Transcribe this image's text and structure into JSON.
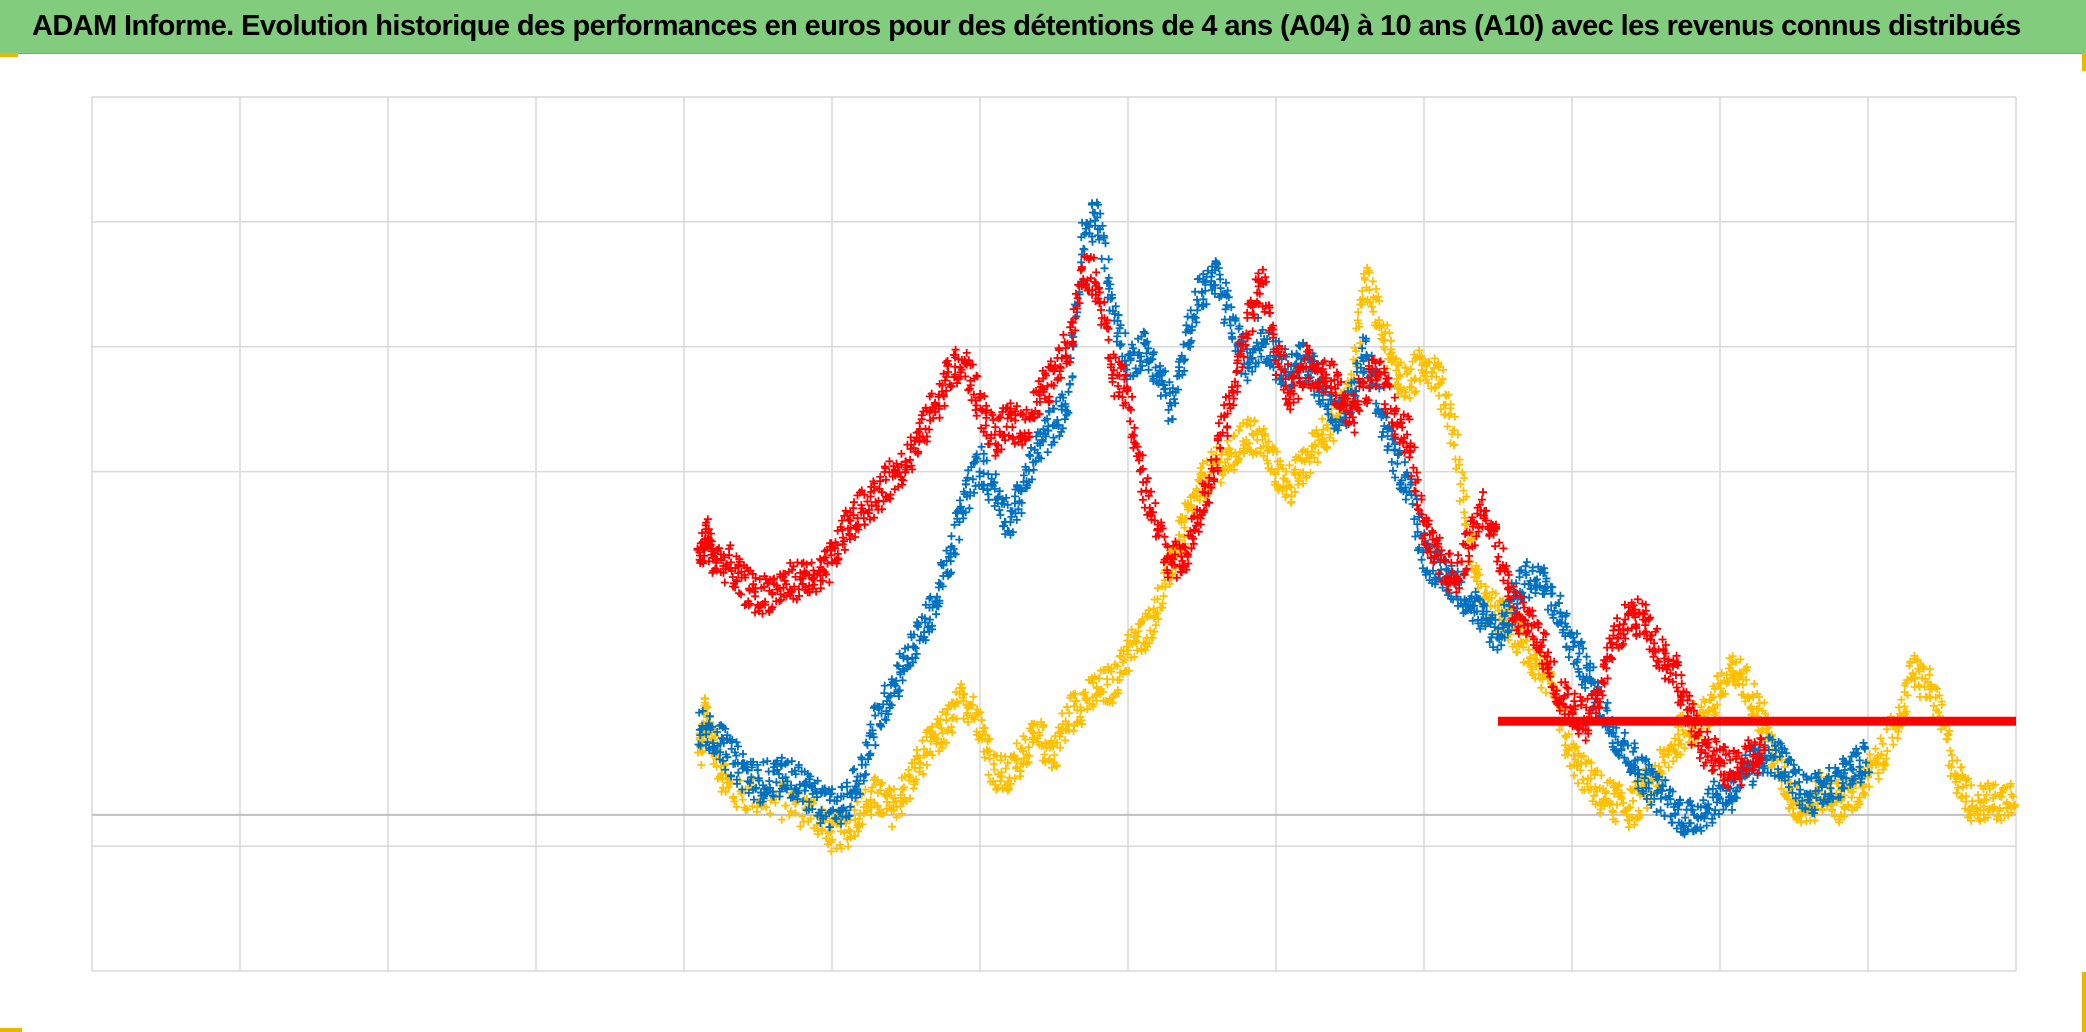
{
  "title": "ADAM Informe. Evolution historique des performances en euros pour des détentions de 4 ans (A04) à 10 ans (A10) avec les revenus connus distribués",
  "colors": {
    "title_bg": "#82cc7e",
    "grid": "#d9d9d9",
    "zero_line": "#bfbfbf",
    "frame_corner": "#e8b800"
  },
  "chart_data": {
    "type": "scatter",
    "marker": "cross",
    "title": "ADAM Informe. Evolution historique des performances en euros pour des détentions de 4 ans (A04) à 10 ans (A10) avec les revenus connus distribués",
    "xlim": [
      0,
      13
    ],
    "ylim": [
      -1.25,
      5.75
    ],
    "x_gridlines": 13,
    "y_gridlines": [
      -1.25,
      -0.25,
      0,
      2.75,
      3.75,
      4.75,
      5.75
    ],
    "grid": true,
    "legend": "none",
    "series": [
      {
        "color": "#ffc000",
        "points": [
          [
            4.1,
            0.45
          ],
          [
            4.15,
            0.85
          ],
          [
            4.2,
            0.55
          ],
          [
            4.3,
            0.2
          ],
          [
            4.5,
            0.15
          ],
          [
            4.7,
            0.1
          ],
          [
            4.9,
            0.0
          ],
          [
            5.0,
            -0.15
          ],
          [
            5.1,
            -0.1
          ],
          [
            5.2,
            0.05
          ],
          [
            5.3,
            0.15
          ],
          [
            5.4,
            0.05
          ],
          [
            5.5,
            0.2
          ],
          [
            5.6,
            0.45
          ],
          [
            5.7,
            0.6
          ],
          [
            5.8,
            0.75
          ],
          [
            5.9,
            0.95
          ],
          [
            6.0,
            0.75
          ],
          [
            6.1,
            0.35
          ],
          [
            6.2,
            0.3
          ],
          [
            6.3,
            0.55
          ],
          [
            6.4,
            0.6
          ],
          [
            6.5,
            0.5
          ],
          [
            6.6,
            0.8
          ],
          [
            6.7,
            0.9
          ],
          [
            6.8,
            1.0
          ],
          [
            6.9,
            1.05
          ],
          [
            7.0,
            1.3
          ],
          [
            7.1,
            1.45
          ],
          [
            7.2,
            1.65
          ],
          [
            7.3,
            2.05
          ],
          [
            7.4,
            2.35
          ],
          [
            7.5,
            2.65
          ],
          [
            7.6,
            2.8
          ],
          [
            7.7,
            2.85
          ],
          [
            7.8,
            3.05
          ],
          [
            7.9,
            3.0
          ],
          [
            8.0,
            2.75
          ],
          [
            8.1,
            2.65
          ],
          [
            8.2,
            2.8
          ],
          [
            8.3,
            3.05
          ],
          [
            8.4,
            3.15
          ],
          [
            8.5,
            3.4
          ],
          [
            8.6,
            4.3
          ],
          [
            8.7,
            4.0
          ],
          [
            8.8,
            3.55
          ],
          [
            8.9,
            3.45
          ],
          [
            9.0,
            3.65
          ],
          [
            9.1,
            3.5
          ],
          [
            9.2,
            3.1
          ],
          [
            9.3,
            2.2
          ],
          [
            9.4,
            1.7
          ],
          [
            9.5,
            1.6
          ],
          [
            9.6,
            1.5
          ],
          [
            9.7,
            1.3
          ],
          [
            9.8,
            1.15
          ],
          [
            9.9,
            0.85
          ],
          [
            10.0,
            0.45
          ],
          [
            10.1,
            0.3
          ],
          [
            10.2,
            0.15
          ],
          [
            10.3,
            0.1
          ],
          [
            10.4,
            0.05
          ],
          [
            10.5,
            0.2
          ],
          [
            10.6,
            0.35
          ],
          [
            10.7,
            0.6
          ],
          [
            10.8,
            0.7
          ],
          [
            10.9,
            0.8
          ],
          [
            11.0,
            1.0
          ],
          [
            11.1,
            1.15
          ],
          [
            11.2,
            1.0
          ],
          [
            11.3,
            0.75
          ],
          [
            11.4,
            0.35
          ],
          [
            11.5,
            0.1
          ],
          [
            11.6,
            0.05
          ],
          [
            11.7,
            0.2
          ],
          [
            11.8,
            0.1
          ],
          [
            11.9,
            0.15
          ],
          [
            12.0,
            0.3
          ],
          [
            12.1,
            0.5
          ],
          [
            12.2,
            0.75
          ],
          [
            12.3,
            1.15
          ],
          [
            12.4,
            1.05
          ],
          [
            12.5,
            0.75
          ],
          [
            12.6,
            0.3
          ],
          [
            12.7,
            0.1
          ],
          [
            12.8,
            0.1
          ],
          [
            12.9,
            0.1
          ],
          [
            13.0,
            0.2
          ]
        ]
      },
      {
        "color": "#0070c0",
        "points": [
          [
            4.1,
            0.7
          ],
          [
            4.2,
            0.65
          ],
          [
            4.3,
            0.5
          ],
          [
            4.4,
            0.35
          ],
          [
            4.5,
            0.25
          ],
          [
            4.6,
            0.3
          ],
          [
            4.7,
            0.3
          ],
          [
            4.8,
            0.25
          ],
          [
            4.9,
            0.1
          ],
          [
            5.0,
            0.05
          ],
          [
            5.1,
            0.1
          ],
          [
            5.2,
            0.35
          ],
          [
            5.3,
            0.75
          ],
          [
            5.4,
            1.0
          ],
          [
            5.5,
            1.25
          ],
          [
            5.6,
            1.45
          ],
          [
            5.7,
            1.7
          ],
          [
            5.8,
            2.05
          ],
          [
            5.9,
            2.55
          ],
          [
            6.0,
            2.8
          ],
          [
            6.1,
            2.6
          ],
          [
            6.2,
            2.35
          ],
          [
            6.3,
            2.65
          ],
          [
            6.4,
            2.95
          ],
          [
            6.5,
            3.15
          ],
          [
            6.6,
            3.3
          ],
          [
            6.7,
            4.65
          ],
          [
            6.8,
            4.8
          ],
          [
            6.9,
            4.05
          ],
          [
            7.0,
            3.6
          ],
          [
            7.1,
            3.75
          ],
          [
            7.2,
            3.55
          ],
          [
            7.3,
            3.25
          ],
          [
            7.4,
            3.85
          ],
          [
            7.5,
            4.2
          ],
          [
            7.6,
            4.3
          ],
          [
            7.7,
            3.95
          ],
          [
            7.8,
            3.6
          ],
          [
            7.9,
            3.85
          ],
          [
            8.0,
            3.65
          ],
          [
            8.1,
            3.55
          ],
          [
            8.2,
            3.65
          ],
          [
            8.3,
            3.45
          ],
          [
            8.4,
            3.15
          ],
          [
            8.5,
            3.3
          ],
          [
            8.6,
            3.7
          ],
          [
            8.7,
            3.25
          ],
          [
            8.8,
            2.85
          ],
          [
            8.9,
            2.65
          ],
          [
            9.0,
            2.1
          ],
          [
            9.1,
            1.95
          ],
          [
            9.2,
            1.85
          ],
          [
            9.3,
            1.75
          ],
          [
            9.4,
            1.55
          ],
          [
            9.5,
            1.45
          ],
          [
            9.6,
            1.7
          ],
          [
            9.7,
            1.9
          ],
          [
            9.8,
            1.85
          ],
          [
            9.9,
            1.65
          ],
          [
            10.0,
            1.35
          ],
          [
            10.1,
            1.15
          ],
          [
            10.2,
            0.85
          ],
          [
            10.3,
            0.65
          ],
          [
            10.4,
            0.45
          ],
          [
            10.5,
            0.3
          ],
          [
            10.6,
            0.15
          ],
          [
            10.7,
            0.05
          ],
          [
            10.8,
            -0.05
          ],
          [
            10.9,
            0.05
          ],
          [
            11.0,
            0.15
          ],
          [
            11.1,
            0.2
          ],
          [
            11.2,
            0.35
          ],
          [
            11.3,
            0.5
          ],
          [
            11.4,
            0.45
          ],
          [
            11.5,
            0.25
          ],
          [
            11.6,
            0.15
          ],
          [
            11.7,
            0.2
          ],
          [
            11.8,
            0.3
          ],
          [
            11.9,
            0.35
          ],
          [
            12.0,
            0.45
          ]
        ]
      },
      {
        "color": "#ff0000",
        "points": [
          [
            4.1,
            2.0
          ],
          [
            4.15,
            2.25
          ],
          [
            4.2,
            2.05
          ],
          [
            4.3,
            2.0
          ],
          [
            4.4,
            1.85
          ],
          [
            4.5,
            1.75
          ],
          [
            4.6,
            1.8
          ],
          [
            4.7,
            1.85
          ],
          [
            4.8,
            1.9
          ],
          [
            4.9,
            1.85
          ],
          [
            5.0,
            2.05
          ],
          [
            5.1,
            2.3
          ],
          [
            5.2,
            2.45
          ],
          [
            5.3,
            2.55
          ],
          [
            5.4,
            2.7
          ],
          [
            5.5,
            2.85
          ],
          [
            5.6,
            3.05
          ],
          [
            5.7,
            3.3
          ],
          [
            5.8,
            3.55
          ],
          [
            5.9,
            3.6
          ],
          [
            6.0,
            3.3
          ],
          [
            6.1,
            3.0
          ],
          [
            6.2,
            3.15
          ],
          [
            6.3,
            3.1
          ],
          [
            6.4,
            3.35
          ],
          [
            6.5,
            3.5
          ],
          [
            6.6,
            3.8
          ],
          [
            6.7,
            4.4
          ],
          [
            6.8,
            4.25
          ],
          [
            6.9,
            3.55
          ],
          [
            7.0,
            3.35
          ],
          [
            7.1,
            2.65
          ],
          [
            7.2,
            2.3
          ],
          [
            7.3,
            2.0
          ],
          [
            7.4,
            2.15
          ],
          [
            7.5,
            2.45
          ],
          [
            7.6,
            2.85
          ],
          [
            7.7,
            3.35
          ],
          [
            7.8,
            3.9
          ],
          [
            7.9,
            4.3
          ],
          [
            8.0,
            3.7
          ],
          [
            8.1,
            3.4
          ],
          [
            8.2,
            3.6
          ],
          [
            8.3,
            3.55
          ],
          [
            8.4,
            3.45
          ],
          [
            8.5,
            3.15
          ],
          [
            8.6,
            3.45
          ],
          [
            8.7,
            3.55
          ],
          [
            8.8,
            3.2
          ],
          [
            8.9,
            3.0
          ],
          [
            9.0,
            2.25
          ],
          [
            9.1,
            2.05
          ],
          [
            9.2,
            1.9
          ],
          [
            9.3,
            2.15
          ],
          [
            9.4,
            2.5
          ],
          [
            9.5,
            2.15
          ],
          [
            9.6,
            1.65
          ],
          [
            9.7,
            1.55
          ],
          [
            9.8,
            1.35
          ],
          [
            9.9,
            1.0
          ],
          [
            10.0,
            0.85
          ],
          [
            10.1,
            0.75
          ],
          [
            10.2,
            1.05
          ],
          [
            10.3,
            1.4
          ],
          [
            10.4,
            1.6
          ],
          [
            10.5,
            1.55
          ],
          [
            10.6,
            1.3
          ],
          [
            10.7,
            1.15
          ],
          [
            10.8,
            0.75
          ],
          [
            10.9,
            0.55
          ],
          [
            11.0,
            0.4
          ],
          [
            11.1,
            0.35
          ],
          [
            11.2,
            0.45
          ],
          [
            11.3,
            0.5
          ]
        ]
      }
    ],
    "reference_line": {
      "color": "#ff0000",
      "x_start": 9.5,
      "x_end": 13.0,
      "y": 0.75
    }
  }
}
